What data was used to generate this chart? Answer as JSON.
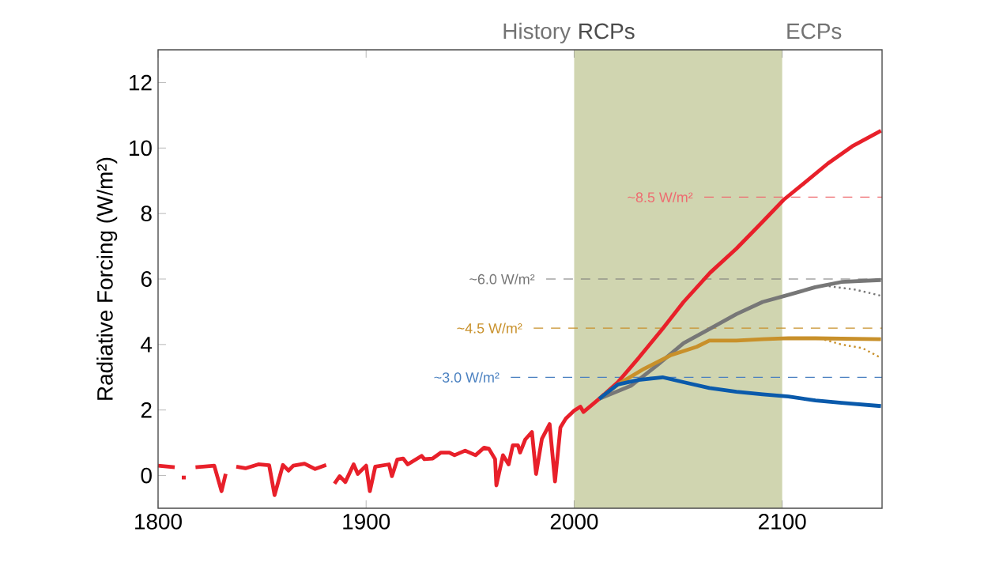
{
  "chart_data": {
    "type": "line",
    "ylabel": "Radiative Forcing (W/m²)",
    "xlim": [
      1800,
      2148
    ],
    "ylim": [
      -1,
      13
    ],
    "xticks": [
      1800,
      1900,
      2000,
      2100
    ],
    "yticks": [
      0,
      2,
      4,
      6,
      8,
      10,
      12
    ],
    "grid": false,
    "bands": [
      {
        "axis": "x",
        "from": 2000,
        "to": 2100,
        "label": "RCPs",
        "color": "#d0d5b0"
      }
    ],
    "annotations": [
      "History",
      "ECPs"
    ],
    "ref_lines": [
      {
        "axis": "y",
        "value": 8.5,
        "label": "~8.5 W/m²",
        "color": "#ee6b70",
        "line_style": "dashed"
      },
      {
        "axis": "y",
        "value": 6.0,
        "label": "~6.0 W/m²",
        "color": "#777777",
        "line_style": "dashed"
      },
      {
        "axis": "y",
        "value": 4.5,
        "label": "~4.5 W/m²",
        "color": "#c8902a",
        "line_style": "dashed"
      },
      {
        "axis": "y",
        "value": 3.0,
        "label": "~3.0 W/m²",
        "color": "#4a80c0",
        "line_style": "dashed"
      }
    ],
    "series": [
      {
        "color": "#e8202a",
        "line_style": "solid",
        "x": [
          1800,
          1808,
          1809,
          1811.4,
          1813.3,
          1815.5,
          1818,
          1827,
          1830.5,
          1832.5,
          1835,
          1837.6,
          1842,
          1848.2,
          1853.4,
          1856,
          1860,
          1862.7,
          1865,
          1870.4,
          1875.5,
          1880.8,
          1882.7,
          1884.8,
          1887.3,
          1890,
          1894,
          1896,
          1900,
          1901.8,
          1904.4,
          1911,
          1912.4,
          1915,
          1917.8,
          1920,
          1926.7,
          1928,
          1932,
          1936,
          1940,
          1942.5,
          1947.6,
          1952.6,
          1956.7,
          1959,
          1962,
          1962.6,
          1965.8,
          1968.5,
          1970.5,
          1973,
          1974,
          1976.5,
          1979.7,
          1981.7,
          1984.5,
          1988.2,
          1990.8,
          1993.4,
          1996,
          2000,
          2003,
          2004.5,
          2012,
          2021,
          2031,
          2042.5,
          2052.6,
          2065.3,
          2078,
          2090.6,
          2100.7,
          2110.8,
          2122,
          2133.6,
          2147.5
        ],
        "values": [
          0.3,
          0.25,
          null,
          -0.06,
          -0.06,
          null,
          0.25,
          0.3,
          -0.48,
          0.05,
          null,
          0.27,
          0.22,
          0.34,
          0.31,
          -0.6,
          0.32,
          0.15,
          0.3,
          0.36,
          0.2,
          0.32,
          null,
          -0.25,
          -0.02,
          -0.2,
          0.34,
          0.05,
          0.3,
          -0.48,
          0.27,
          0.34,
          -0.02,
          0.49,
          0.52,
          0.34,
          0.6,
          0.5,
          0.52,
          0.7,
          0.7,
          0.62,
          0.76,
          0.62,
          0.85,
          0.82,
          0.5,
          -0.3,
          0.62,
          0.34,
          0.92,
          0.92,
          0.7,
          1.1,
          1.33,
          0.05,
          1.12,
          1.57,
          -0.18,
          1.47,
          1.74,
          1.98,
          2.1,
          1.94,
          2.34,
          2.85,
          3.59,
          4.48,
          5.3,
          6.19,
          6.93,
          7.75,
          8.42,
          8.94,
          9.53,
          10.05,
          10.53
        ]
      },
      {
        "color": "#777777",
        "line_style": "solid",
        "x": [
          2012,
          2027.3,
          2040,
          2052.6,
          2065.3,
          2078,
          2090.6,
          2103.2,
          2115.8,
          2128.5,
          2147.5
        ],
        "values": [
          2.34,
          2.74,
          3.37,
          4.04,
          4.48,
          4.93,
          5.3,
          5.52,
          5.75,
          5.91,
          5.97
        ]
      },
      {
        "color": "#777777",
        "line_style": "dotted",
        "x": [
          2120,
          2134.8,
          2147.5
        ],
        "values": [
          5.8,
          5.68,
          5.49
        ]
      },
      {
        "color": "#c8902a",
        "line_style": "solid",
        "x": [
          2012,
          2021,
          2033.6,
          2046.3,
          2058.9,
          2065,
          2078,
          2090.6,
          2103,
          2116,
          2147.5
        ],
        "values": [
          2.34,
          2.78,
          3.26,
          3.67,
          3.93,
          4.12,
          4.12,
          4.16,
          4.19,
          4.19,
          4.16
        ]
      },
      {
        "color": "#c8902a",
        "line_style": "dotted",
        "x": [
          2118,
          2128.5,
          2138.6,
          2147.5
        ],
        "values": [
          4.19,
          4.0,
          3.89,
          3.59
        ]
      },
      {
        "color": "#0a5aab",
        "line_style": "solid",
        "x": [
          2012,
          2021,
          2031,
          2042.5,
          2052.6,
          2065,
          2078,
          2090.6,
          2103,
          2116,
          2128.5,
          2147.5
        ],
        "values": [
          2.34,
          2.78,
          2.92,
          3.0,
          2.85,
          2.67,
          2.56,
          2.48,
          2.41,
          2.29,
          2.22,
          2.12
        ]
      }
    ]
  }
}
